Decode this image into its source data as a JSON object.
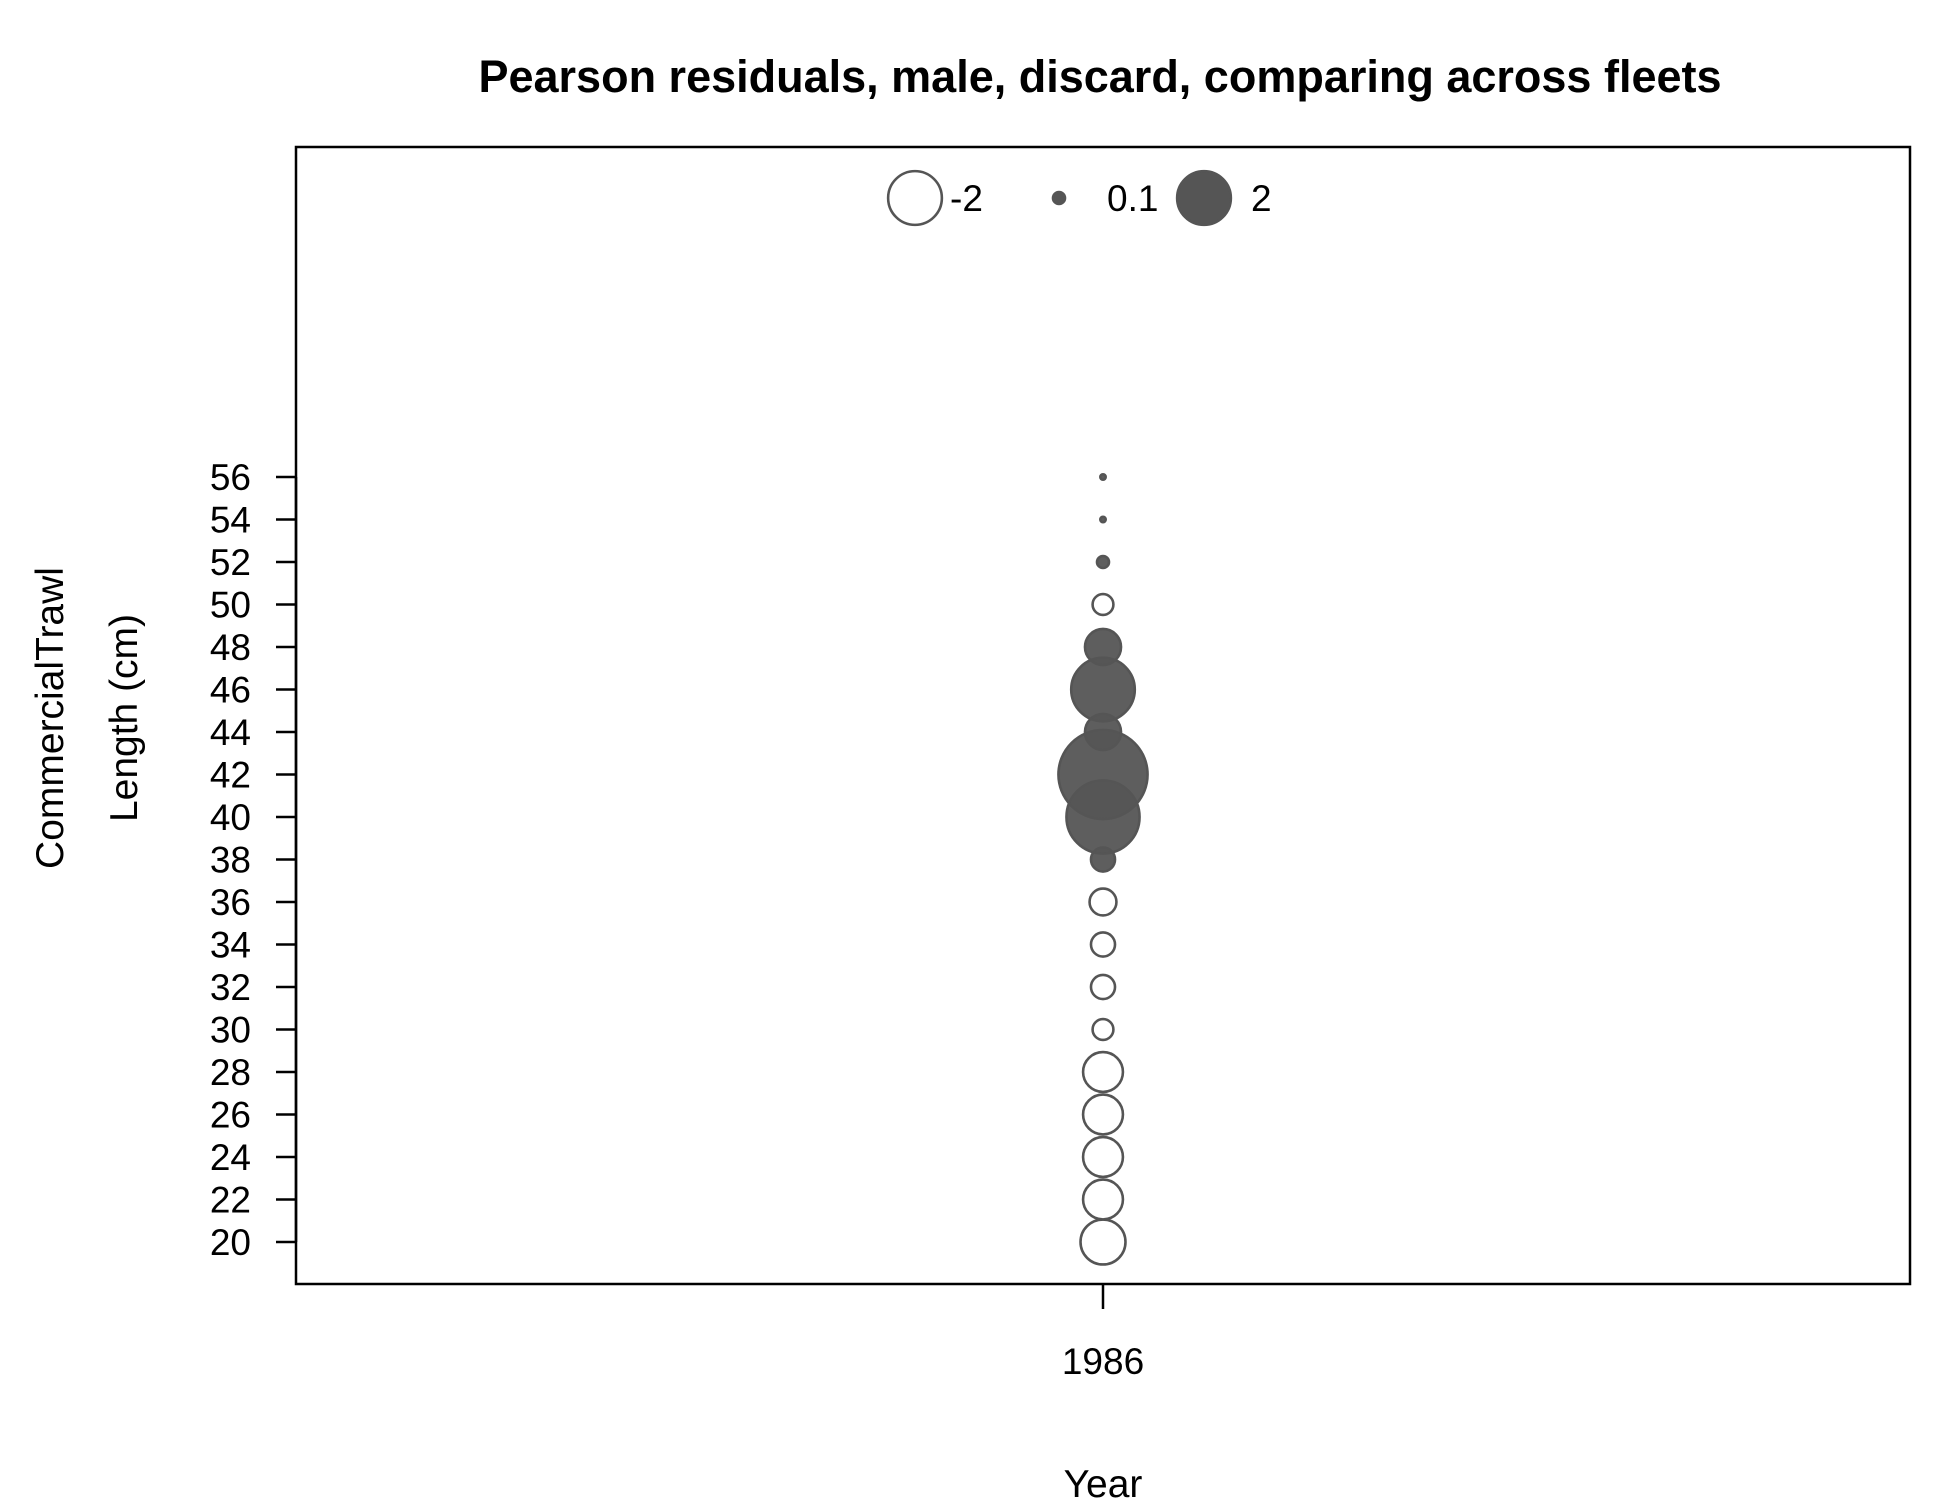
{
  "chart_data": {
    "type": "scatter",
    "subtype": "bubble",
    "title": "Pearson residuals, male, discard, comparing across fleets",
    "xlabel": "Year",
    "ylabel_lines": [
      "CommercialTrawl",
      "Length (cm)"
    ],
    "x_ticks": [
      "1986"
    ],
    "y_ticks": [
      "20",
      "22",
      "24",
      "26",
      "28",
      "30",
      "32",
      "34",
      "36",
      "38",
      "40",
      "42",
      "44",
      "46",
      "48",
      "50",
      "52",
      "54",
      "56"
    ],
    "ylim": [
      16,
      70
    ],
    "grid": false,
    "legend": {
      "placement": "top-center",
      "orientation": "horizontal",
      "entries": [
        {
          "label": "-2",
          "value": -2
        },
        {
          "label": "0.1",
          "value": 0.1
        },
        {
          "label": "2",
          "value": 2
        }
      ]
    },
    "colors": {
      "positive_fill": "#555555",
      "negative_fill": "#ffffff",
      "stroke": "#555555"
    },
    "points": [
      {
        "year": 1986,
        "length": 20,
        "residual": -1.4
      },
      {
        "year": 1986,
        "length": 22,
        "residual": -1.1
      },
      {
        "year": 1986,
        "length": 24,
        "residual": -1.1
      },
      {
        "year": 1986,
        "length": 26,
        "residual": -1.1
      },
      {
        "year": 1986,
        "length": 28,
        "residual": -1.1
      },
      {
        "year": 1986,
        "length": 30,
        "residual": -0.3
      },
      {
        "year": 1986,
        "length": 32,
        "residual": -0.4
      },
      {
        "year": 1986,
        "length": 34,
        "residual": -0.4
      },
      {
        "year": 1986,
        "length": 36,
        "residual": -0.5
      },
      {
        "year": 1986,
        "length": 38,
        "residual": 0.4
      },
      {
        "year": 1986,
        "length": 40,
        "residual": 3.7
      },
      {
        "year": 1986,
        "length": 42,
        "residual": 5.5
      },
      {
        "year": 1986,
        "length": 44,
        "residual": 0.9
      },
      {
        "year": 1986,
        "length": 46,
        "residual": 2.8
      },
      {
        "year": 1986,
        "length": 48,
        "residual": 0.9
      },
      {
        "year": 1986,
        "length": 50,
        "residual": -0.3
      },
      {
        "year": 1986,
        "length": 52,
        "residual": 0.1
      },
      {
        "year": 1986,
        "length": 54,
        "residual": 0.02
      },
      {
        "year": 1986,
        "length": 56,
        "residual": 0.02
      }
    ]
  }
}
